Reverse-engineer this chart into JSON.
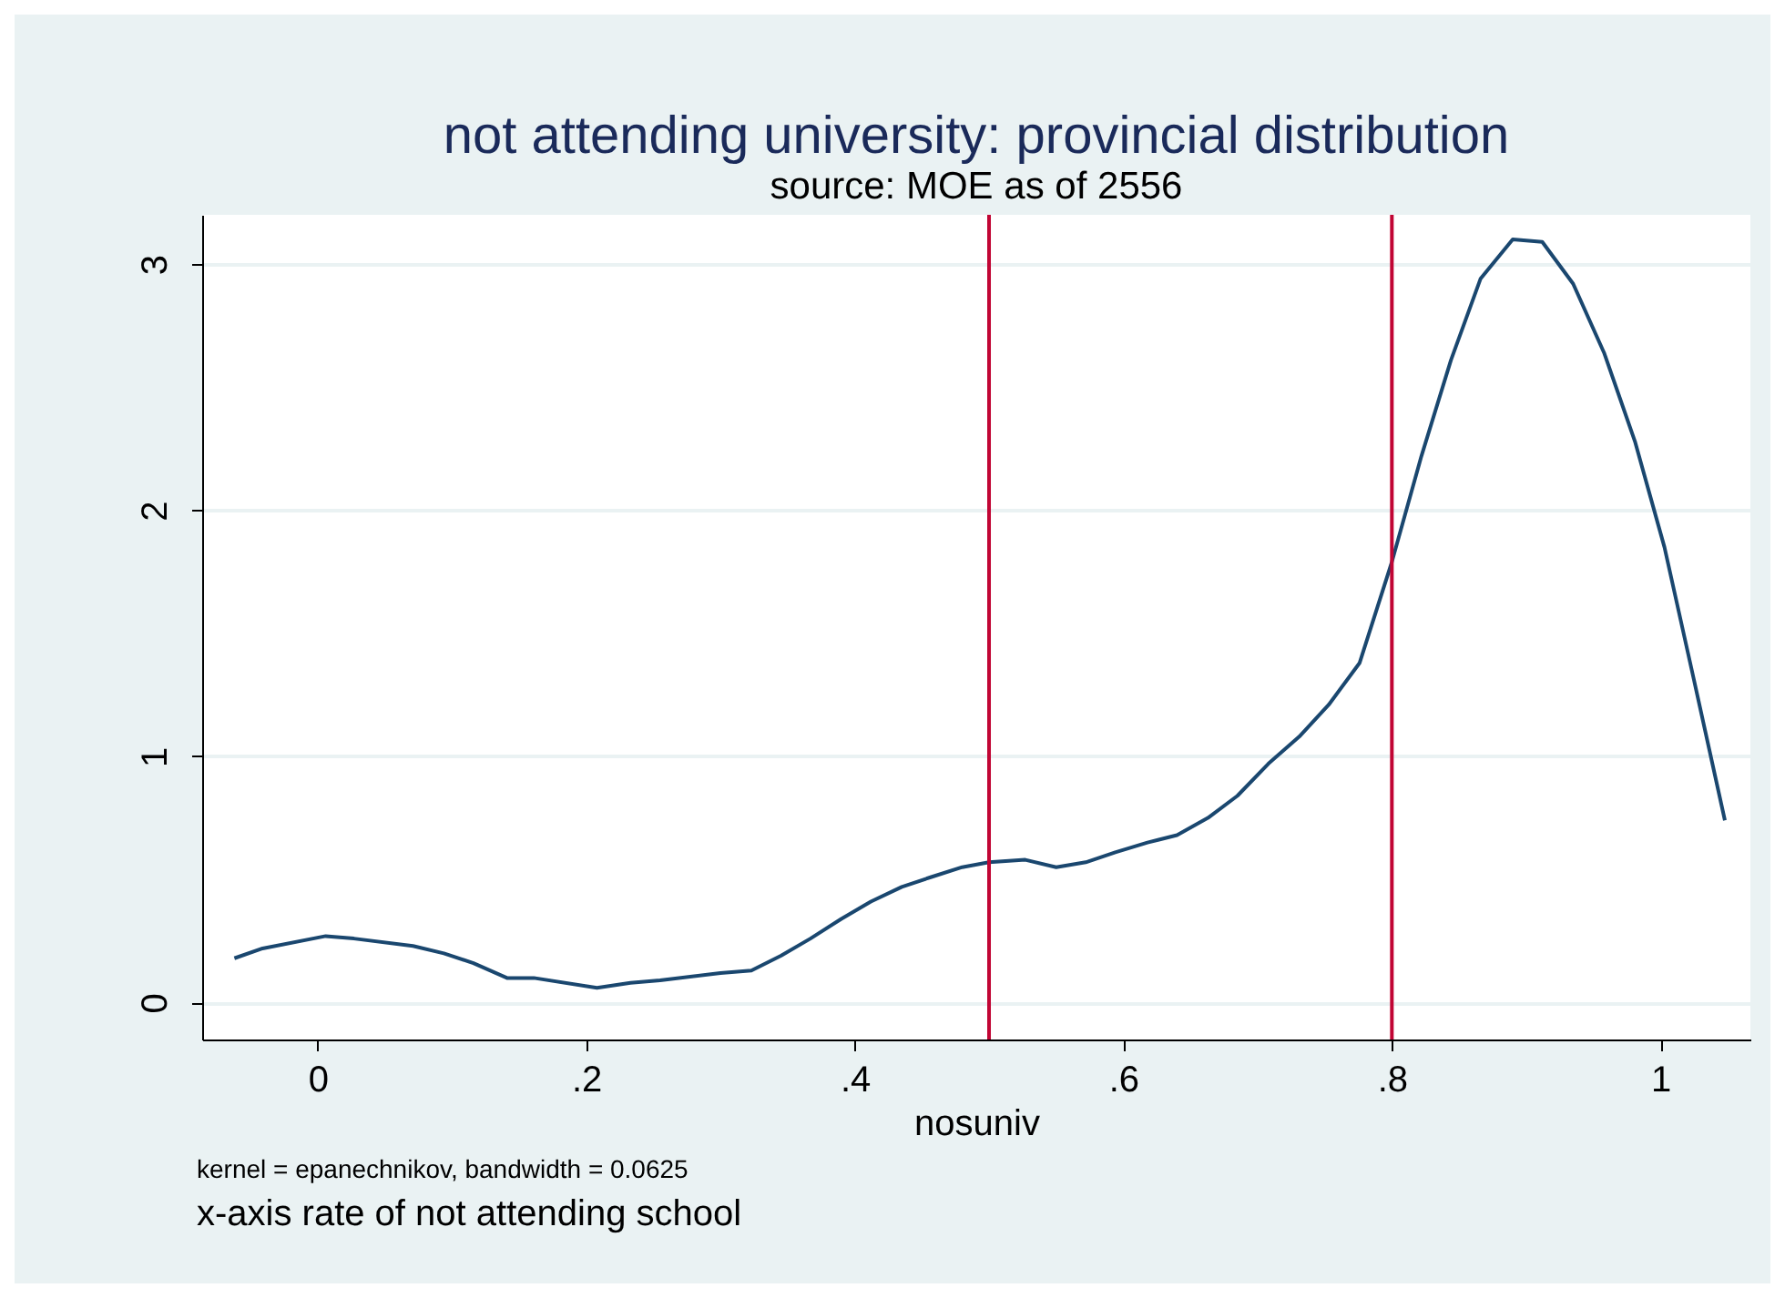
{
  "chart_data": {
    "type": "line",
    "title": "not attending university: provincial distribution",
    "subtitle": "source: MOE as of 2556",
    "xlabel": "nosuniv",
    "x": [
      -0.062,
      -0.041,
      0.006,
      0.027,
      0.071,
      0.094,
      0.116,
      0.141,
      0.161,
      0.208,
      0.233,
      0.255,
      0.3,
      0.323,
      0.345,
      0.367,
      0.39,
      0.412,
      0.435,
      0.457,
      0.48,
      0.5,
      0.527,
      0.55,
      0.572,
      0.594,
      0.618,
      0.64,
      0.663,
      0.685,
      0.708,
      0.731,
      0.753,
      0.776,
      0.8,
      0.822,
      0.844,
      0.866,
      0.89,
      0.912,
      0.935,
      0.958,
      0.981,
      1.003,
      1.025,
      1.048
    ],
    "series": [
      {
        "color": "#1a476f",
        "values": [
          0.18,
          0.22,
          0.27,
          0.26,
          0.23,
          0.2,
          0.16,
          0.1,
          0.1,
          0.06,
          0.08,
          0.09,
          0.12,
          0.13,
          0.19,
          0.26,
          0.34,
          0.41,
          0.47,
          0.51,
          0.55,
          0.57,
          0.58,
          0.55,
          0.57,
          0.61,
          0.65,
          0.68,
          0.75,
          0.84,
          0.97,
          1.08,
          1.21,
          1.38,
          1.79,
          2.22,
          2.61,
          2.94,
          3.1,
          3.09,
          2.92,
          2.64,
          2.28,
          1.85,
          1.31,
          0.74
        ]
      }
    ],
    "xlim": [
      -0.086,
      1.067
    ],
    "ylim": [
      -0.15,
      3.2
    ],
    "xticks": [
      0,
      {
        "value": 0.2,
        "label": ".2"
      },
      {
        "value": 0.4,
        "label": ".4"
      },
      {
        "value": 0.6,
        "label": ".6"
      },
      {
        "value": 0.8,
        "label": ".8"
      },
      1
    ],
    "yticks": [
      0,
      1,
      2,
      3
    ],
    "grid": "y",
    "marker": "none",
    "line_style": "solid",
    "ref_lines": [
      {
        "axis": "x",
        "value": 0.5,
        "color": "#c10534"
      },
      {
        "axis": "x",
        "value": 0.8,
        "color": "#c10534"
      }
    ],
    "annotations": [
      "kernel = epanechnikov, bandwidth = 0.0625",
      "x-axis  rate of not attending school"
    ]
  }
}
